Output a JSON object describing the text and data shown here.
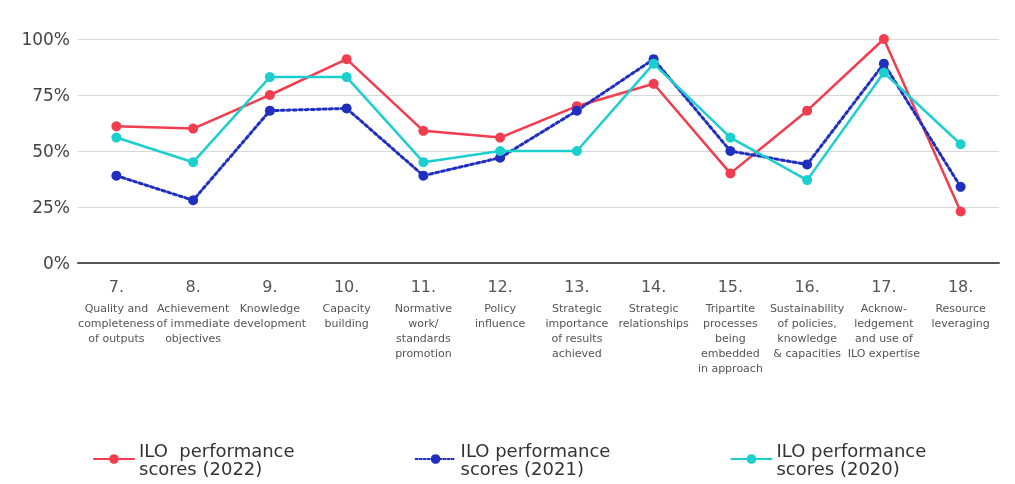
{
  "chart_data": {
    "type": "line",
    "categories": [
      "7.\nQuality and\ncompleteness\nof outputs",
      "8.\nAchievement\nof immediate\nobjectives",
      "9.\nKnowledge\ndevelopment",
      "10.\nCapacity\nbuilding",
      "11.\nNormative\nwork/\nstandards\npromotion",
      "12.\nPolicy\ninfluence",
      "13.\nStrategic\nimportance\nof results\nachieved",
      "14.\nStrategic\nrelationships",
      "15.\nTripartite\nprocesses\nbeing\nembedded\nin approach",
      "16.\nSustainability\nof policies,\nknowledge\n& capacities",
      "17.\nAcknow-\nledgement\nand use of\nILO expertise",
      "18.\nResource\nleveraging"
    ],
    "series": [
      {
        "name": "ILO  performance\nscores (2022)",
        "color": "#f23d4f",
        "line_style": "solid",
        "values": [
          61,
          60,
          75,
          91,
          59,
          56,
          70,
          80,
          40,
          68,
          100,
          23
        ]
      },
      {
        "name": "ILO performance\nscores (2021)",
        "color": "#1f2fbf",
        "line_style": "dotted",
        "values": [
          39,
          28,
          68,
          69,
          39,
          47,
          68,
          91,
          50,
          44,
          89,
          34
        ]
      },
      {
        "name": "ILO performance\nscores (2020)",
        "color": "#1ccfcf",
        "line_style": "solid",
        "values": [
          56,
          45,
          83,
          83,
          45,
          50,
          50,
          89,
          56,
          37,
          85,
          53
        ]
      }
    ],
    "ylim": [
      0,
      100
    ],
    "yticks": [
      {
        "value": 0,
        "label": "0%"
      },
      {
        "value": 25,
        "label": "25%"
      },
      {
        "value": 50,
        "label": "50%"
      },
      {
        "value": 75,
        "label": "75%"
      },
      {
        "value": 100,
        "label": "100%"
      }
    ],
    "grid": "y",
    "legend": "bottom left",
    "marker": "circle"
  }
}
